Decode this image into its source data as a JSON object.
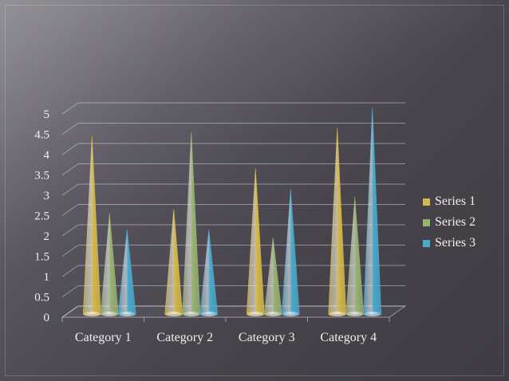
{
  "chart_data": {
    "type": "bar",
    "bar_shape": "cone",
    "categories": [
      "Category 1",
      "Category 2",
      "Category 3",
      "Category 4"
    ],
    "series": [
      {
        "name": "Series 1",
        "values": [
          4.3,
          2.5,
          3.5,
          4.5
        ],
        "color": "#d4b84a"
      },
      {
        "name": "Series 2",
        "values": [
          2.4,
          4.4,
          1.8,
          2.8
        ],
        "color": "#98b173"
      },
      {
        "name": "Series 3",
        "values": [
          2.0,
          2.0,
          3.0,
          5.0
        ],
        "color": "#4aa8cc"
      }
    ],
    "ylim": [
      0,
      5
    ],
    "yticks": [
      "0",
      "0.5",
      "1",
      "1.5",
      "2",
      "2.5",
      "3",
      "3.5",
      "4",
      "4.5",
      "5"
    ],
    "grid": true,
    "legend_position": "right"
  }
}
